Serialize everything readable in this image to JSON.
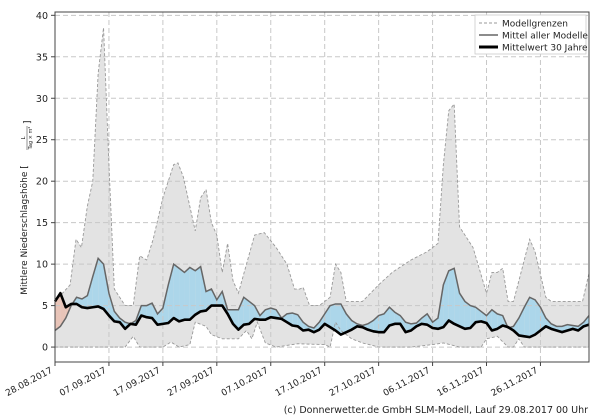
{
  "chart_data": {
    "type": "area",
    "title": "",
    "ylabel": "Mittlere Niederschlagshöhe",
    "ylabel_unit_num": "L",
    "ylabel_unit_den": "Tag × m²",
    "xlabel": "",
    "ylim": [
      -1.8,
      40.4
    ],
    "xlim_days": [
      0,
      99
    ],
    "yticks": [
      0,
      5,
      10,
      15,
      20,
      25,
      30,
      35,
      40
    ],
    "xticks": [
      {
        "day": 0,
        "label": "28.08.2017"
      },
      {
        "day": 10,
        "label": "07.09.2017"
      },
      {
        "day": 20,
        "label": "17.09.2017"
      },
      {
        "day": 30,
        "label": "27.09.2017"
      },
      {
        "day": 40,
        "label": "07.10.2017"
      },
      {
        "day": 50,
        "label": "17.10.2017"
      },
      {
        "day": 60,
        "label": "27.10.2017"
      },
      {
        "day": 70,
        "label": "06.11.2017"
      },
      {
        "day": 80,
        "label": "16.11.2017"
      },
      {
        "day": 90,
        "label": "26.11.2017"
      }
    ],
    "grid": true,
    "legend_position": "top-right",
    "legend": [
      "Modellgrenzen",
      "Mittel aller Modelle",
      "Mittelwert 30 Jahre"
    ],
    "series": [
      {
        "name": "Modellgrenzen (oben)",
        "points": [
          [
            0,
            5.5
          ],
          [
            2.8,
            7.5
          ],
          [
            3.9,
            13
          ],
          [
            4.9,
            12
          ],
          [
            6,
            17
          ],
          [
            7,
            20
          ],
          [
            8,
            33
          ],
          [
            9,
            38.5
          ],
          [
            10,
            22
          ],
          [
            11,
            7
          ],
          [
            12,
            6
          ],
          [
            13,
            5
          ],
          [
            14.5,
            5
          ],
          [
            15.7,
            11
          ],
          [
            17,
            10.5
          ],
          [
            18.2,
            13
          ],
          [
            20,
            18
          ],
          [
            22,
            22
          ],
          [
            22.8,
            22.2
          ],
          [
            23.8,
            20.5
          ],
          [
            26,
            14
          ],
          [
            27,
            18
          ],
          [
            28,
            19
          ],
          [
            29,
            15
          ],
          [
            30,
            13.5
          ],
          [
            31,
            9
          ],
          [
            32,
            12.5
          ],
          [
            33,
            8
          ],
          [
            34,
            6.5
          ],
          [
            37,
            13.5
          ],
          [
            38.8,
            13.8
          ],
          [
            41,
            12
          ],
          [
            43,
            10
          ],
          [
            44.4,
            7
          ],
          [
            45.4,
            7
          ],
          [
            46,
            7.2
          ],
          [
            47.2,
            5
          ],
          [
            49,
            5
          ],
          [
            51,
            6
          ],
          [
            52,
            10
          ],
          [
            53,
            9
          ],
          [
            54,
            5.5
          ],
          [
            57,
            5.5
          ],
          [
            60,
            7.5
          ],
          [
            62.5,
            9
          ],
          [
            66,
            10.5
          ],
          [
            69,
            11.5
          ],
          [
            71,
            12.5
          ],
          [
            72,
            22
          ],
          [
            73,
            28.5
          ],
          [
            74,
            29.3
          ],
          [
            75,
            14.5
          ],
          [
            77.5,
            12
          ],
          [
            80,
            6.5
          ],
          [
            81,
            9
          ],
          [
            82,
            9
          ],
          [
            83,
            9.5
          ],
          [
            84,
            5.5
          ],
          [
            85,
            5.5
          ],
          [
            88,
            13
          ],
          [
            89,
            11.5
          ],
          [
            91,
            6
          ],
          [
            92,
            5.5
          ],
          [
            97.8,
            5.5
          ],
          [
            99,
            8.9
          ]
        ]
      },
      {
        "name": "Modellgrenzen (unten)",
        "points": [
          [
            0,
            0
          ],
          [
            13,
            0
          ],
          [
            14.5,
            1.3
          ],
          [
            15.7,
            0
          ],
          [
            20,
            0
          ],
          [
            21.5,
            0.6
          ],
          [
            23,
            0
          ],
          [
            25,
            0.3
          ],
          [
            26,
            3
          ],
          [
            28,
            2.5
          ],
          [
            29,
            1.5
          ],
          [
            31,
            1
          ],
          [
            34,
            1
          ],
          [
            35.5,
            2
          ],
          [
            36.5,
            1
          ],
          [
            37.5,
            3
          ],
          [
            39,
            0.5
          ],
          [
            41,
            0
          ],
          [
            45,
            0.4
          ],
          [
            50,
            0.3
          ],
          [
            51,
            0
          ],
          [
            52,
            3
          ],
          [
            53,
            2
          ],
          [
            55,
            1
          ],
          [
            57,
            0.5
          ],
          [
            60,
            0
          ],
          [
            66,
            0
          ],
          [
            70,
            0.3
          ],
          [
            72,
            0.5
          ],
          [
            75,
            0
          ],
          [
            79,
            0
          ],
          [
            80,
            1
          ],
          [
            82,
            1.3
          ],
          [
            84,
            0
          ],
          [
            85,
            0
          ],
          [
            86,
            1
          ],
          [
            87,
            0
          ],
          [
            99,
            0
          ]
        ]
      },
      {
        "name": "Mittel aller Modelle",
        "values": [
          2,
          2.5,
          3.5,
          5,
          6,
          5.8,
          6.2,
          8.5,
          10.7,
          10,
          6.5,
          4.3,
          3.5,
          3,
          2.8,
          3.2,
          5,
          5,
          5.3,
          4,
          4.7,
          7.5,
          10,
          9.5,
          9,
          9.6,
          9.2,
          9.7,
          6.7,
          7,
          5.7,
          6.7,
          4.5,
          4.5,
          4.5,
          6,
          5.5,
          5,
          3.8,
          4.5,
          4.7,
          4.5,
          3.5,
          4,
          4.1,
          3.9,
          3,
          2.5,
          2.3,
          3,
          4,
          5,
          5.2,
          5.2,
          4,
          3.2,
          2.8,
          2.6,
          2.8,
          3.2,
          3.8,
          4,
          4.8,
          4.2,
          3.8,
          3,
          2.8,
          2.9,
          3.5,
          4,
          3,
          3.5,
          7.5,
          9.2,
          9.5,
          6.5,
          5.5,
          5,
          4.8,
          4.3,
          3.8,
          4.5,
          4,
          3.8,
          2.3,
          2.5,
          3.5,
          4.8,
          6,
          5.7,
          4.8,
          3.5,
          2.8,
          2.5,
          2.5,
          2.7,
          2.6,
          2.5,
          3,
          3.8
        ]
      },
      {
        "name": "Mittelwert 30 Jahre",
        "values": [
          5.5,
          6.5,
          4.8,
          5.2,
          5.2,
          4.8,
          4.7,
          4.8,
          4.9,
          4.6,
          3.8,
          3.1,
          3,
          2.2,
          2.8,
          2.7,
          3.8,
          3.6,
          3.5,
          2.7,
          2.8,
          2.9,
          3.5,
          3.1,
          3.3,
          3.3,
          3.9,
          4.3,
          4.4,
          5,
          5,
          5,
          4,
          2.8,
          2.1,
          2.7,
          2.8,
          3.4,
          3.3,
          3.3,
          3.6,
          3.5,
          3.4,
          3,
          2.6,
          2.5,
          2,
          2.1,
          1.8,
          2.1,
          2.8,
          2.4,
          2,
          1.5,
          1.8,
          2.1,
          2.5,
          2.4,
          2.1,
          1.9,
          1.8,
          1.8,
          2.6,
          2.8,
          2.8,
          1.8,
          2,
          2.5,
          2.8,
          2.7,
          2.3,
          2.2,
          2.4,
          3.2,
          2.8,
          2.5,
          2.2,
          2.3,
          3,
          3.1,
          2.9,
          2,
          2.2,
          2.6,
          2.4,
          2,
          1.4,
          1.3,
          1.2,
          1.5,
          2,
          2.5,
          2.2,
          2,
          1.8,
          2,
          2.2,
          2,
          2.5,
          2.7
        ]
      }
    ],
    "colors": {
      "range": "#e3e3e3",
      "above": "#acd6ea",
      "below": "#e8c4b8",
      "mean": "#666666",
      "clim": "#000000"
    }
  },
  "credit": "(c) Donnerwetter.de GmbH SLM-Modell, Lauf 29.08.2017 00 Uhr"
}
